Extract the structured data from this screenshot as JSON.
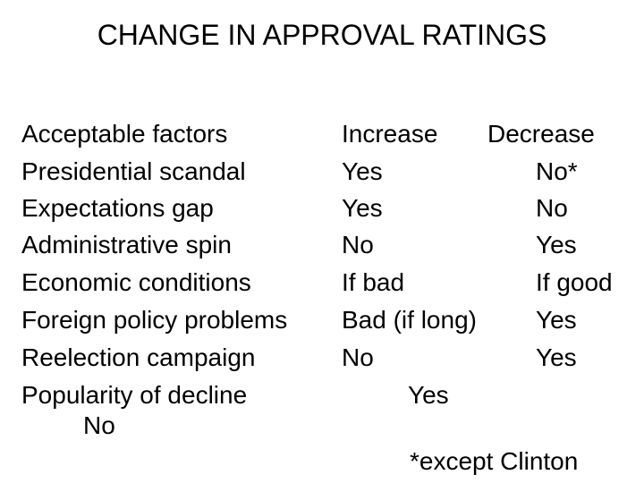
{
  "slide": {
    "title": "CHANGE IN APPROVAL RATINGS"
  },
  "table": {
    "header": {
      "factor": "Acceptable factors",
      "increase": "Increase",
      "decrease": "Decrease"
    },
    "rows": [
      {
        "factor": "Presidential scandal",
        "increase": "Yes",
        "decrease": "No*"
      },
      {
        "factor": "Expectations gap",
        "increase": "Yes",
        "decrease": "No"
      },
      {
        "factor": "Administrative spin",
        "increase": "No",
        "decrease": "Yes"
      },
      {
        "factor": "Economic conditions",
        "increase": "If bad",
        "decrease": "If good"
      },
      {
        "factor": "Foreign policy problems",
        "increase": "Bad (if long)",
        "decrease": "Yes"
      },
      {
        "factor": "Reelection campaign",
        "increase": "No",
        "decrease": "Yes"
      }
    ],
    "last_row": {
      "factor": "Popularity of decline",
      "value": "Yes",
      "wrapped_value": "No"
    },
    "footnote": "*except Clinton"
  },
  "colors": {
    "background": "#ffffff",
    "text": "#000000"
  }
}
